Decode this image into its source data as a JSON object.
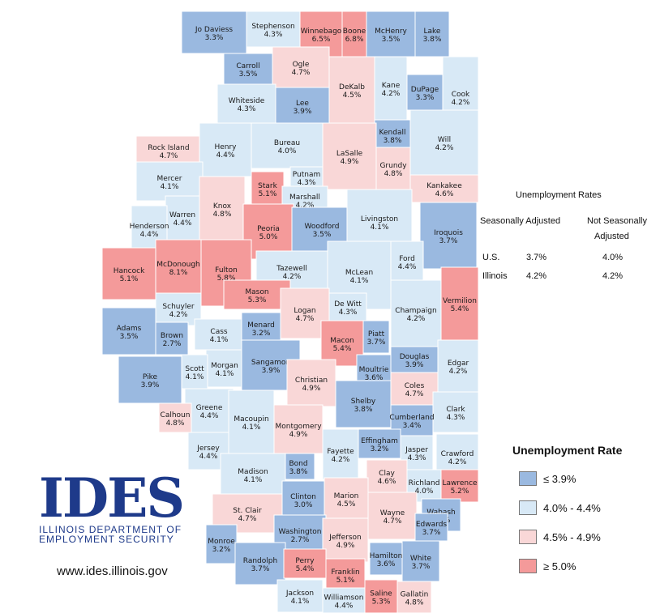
{
  "colors": {
    "low": "#9ab9e0",
    "mid_low": "#d8e9f6",
    "mid_high": "#f9d7d7",
    "high": "#f49a9a",
    "border": "#ffffff"
  },
  "summary": {
    "title": "Unemployment Rates",
    "col1": "Seasonally Adjusted",
    "col2_line1": "Not Seasonally",
    "col2_line2": "Adjusted",
    "rows": [
      {
        "label": "U.S.",
        "sa": "3.7%",
        "nsa": "4.0%"
      },
      {
        "label": "Illinois",
        "sa": "4.2%",
        "nsa": "4.2%"
      }
    ]
  },
  "legend": {
    "title": "Unemployment Rate",
    "items": [
      {
        "label": "≤ 3.9%",
        "color": "#9ab9e0"
      },
      {
        "label": "4.0% - 4.4%",
        "color": "#d8e9f6"
      },
      {
        "label": "4.5% - 4.9%",
        "color": "#f9d7d7"
      },
      {
        "label": "≥ 5.0%",
        "color": "#f49a9a"
      }
    ]
  },
  "logo": {
    "letters": "IDES",
    "line1": "ILLINOIS DEPARTMENT OF",
    "line2": "EMPLOYMENT SECURITY",
    "url": "www.ides.illinois.gov"
  },
  "counties": [
    {
      "name": "Jo Daviess",
      "rate": "3.3%",
      "cls": "low"
    },
    {
      "name": "Stephenson",
      "rate": "4.3%",
      "cls": "mid_low"
    },
    {
      "name": "Winnebago",
      "rate": "6.5%",
      "cls": "high"
    },
    {
      "name": "Boone",
      "rate": "6.8%",
      "cls": "high"
    },
    {
      "name": "McHenry",
      "rate": "3.5%",
      "cls": "low"
    },
    {
      "name": "Lake",
      "rate": "3.8%",
      "cls": "low"
    },
    {
      "name": "Carroll",
      "rate": "3.5%",
      "cls": "low"
    },
    {
      "name": "Ogle",
      "rate": "4.7%",
      "cls": "mid_high"
    },
    {
      "name": "DeKalb",
      "rate": "4.5%",
      "cls": "mid_high"
    },
    {
      "name": "Kane",
      "rate": "4.2%",
      "cls": "mid_low"
    },
    {
      "name": "DuPage",
      "rate": "3.3%",
      "cls": "low"
    },
    {
      "name": "Cook",
      "rate": "4.2%",
      "cls": "mid_low"
    },
    {
      "name": "Whiteside",
      "rate": "4.3%",
      "cls": "mid_low"
    },
    {
      "name": "Lee",
      "rate": "3.9%",
      "cls": "low"
    },
    {
      "name": "Kendall",
      "rate": "3.8%",
      "cls": "low"
    },
    {
      "name": "Will",
      "rate": "4.2%",
      "cls": "mid_low"
    },
    {
      "name": "Rock Island",
      "rate": "4.7%",
      "cls": "mid_high"
    },
    {
      "name": "Henry",
      "rate": "4.4%",
      "cls": "mid_low"
    },
    {
      "name": "Bureau",
      "rate": "4.0%",
      "cls": "mid_low"
    },
    {
      "name": "LaSalle",
      "rate": "4.9%",
      "cls": "mid_high"
    },
    {
      "name": "Grundy",
      "rate": "4.8%",
      "cls": "mid_high"
    },
    {
      "name": "Putnam",
      "rate": "4.3%",
      "cls": "mid_low"
    },
    {
      "name": "Mercer",
      "rate": "4.1%",
      "cls": "mid_low"
    },
    {
      "name": "Stark",
      "rate": "5.1%",
      "cls": "high"
    },
    {
      "name": "Marshall",
      "rate": "4.2%",
      "cls": "mid_low"
    },
    {
      "name": "Kankakee",
      "rate": "4.6%",
      "cls": "mid_high"
    },
    {
      "name": "Warren",
      "rate": "4.4%",
      "cls": "mid_low"
    },
    {
      "name": "Knox",
      "rate": "4.8%",
      "cls": "mid_high"
    },
    {
      "name": "Henderson",
      "rate": "4.4%",
      "cls": "mid_low"
    },
    {
      "name": "Peoria",
      "rate": "5.0%",
      "cls": "high"
    },
    {
      "name": "Woodford",
      "rate": "3.5%",
      "cls": "low"
    },
    {
      "name": "Livingston",
      "rate": "4.1%",
      "cls": "mid_low"
    },
    {
      "name": "Iroquois",
      "rate": "3.7%",
      "cls": "low"
    },
    {
      "name": "Hancock",
      "rate": "5.1%",
      "cls": "high"
    },
    {
      "name": "McDonough",
      "rate": "8.1%",
      "cls": "high"
    },
    {
      "name": "Fulton",
      "rate": "5.8%",
      "cls": "high"
    },
    {
      "name": "Tazewell",
      "rate": "4.2%",
      "cls": "mid_low"
    },
    {
      "name": "McLean",
      "rate": "4.1%",
      "cls": "mid_low"
    },
    {
      "name": "Ford",
      "rate": "4.4%",
      "cls": "mid_low"
    },
    {
      "name": "Mason",
      "rate": "5.3%",
      "cls": "high"
    },
    {
      "name": "Schuyler",
      "rate": "4.2%",
      "cls": "mid_low"
    },
    {
      "name": "Logan",
      "rate": "4.7%",
      "cls": "mid_high"
    },
    {
      "name": "De Witt",
      "rate": "4.3%",
      "cls": "mid_low"
    },
    {
      "name": "Champaign",
      "rate": "4.2%",
      "cls": "mid_low"
    },
    {
      "name": "Vermilion",
      "rate": "5.4%",
      "cls": "high"
    },
    {
      "name": "Adams",
      "rate": "3.5%",
      "cls": "low"
    },
    {
      "name": "Brown",
      "rate": "2.7%",
      "cls": "low"
    },
    {
      "name": "Cass",
      "rate": "4.1%",
      "cls": "mid_low"
    },
    {
      "name": "Menard",
      "rate": "3.2%",
      "cls": "low"
    },
    {
      "name": "Piatt",
      "rate": "3.7%",
      "cls": "low"
    },
    {
      "name": "Macon",
      "rate": "5.4%",
      "cls": "high"
    },
    {
      "name": "Morgan",
      "rate": "4.1%",
      "cls": "mid_low"
    },
    {
      "name": "Sangamon",
      "rate": "3.9%",
      "cls": "low"
    },
    {
      "name": "Douglas",
      "rate": "3.9%",
      "cls": "low"
    },
    {
      "name": "Edgar",
      "rate": "4.2%",
      "cls": "mid_low"
    },
    {
      "name": "Scott",
      "rate": "4.1%",
      "cls": "mid_low"
    },
    {
      "name": "Moultrie",
      "rate": "3.6%",
      "cls": "low"
    },
    {
      "name": "Pike",
      "rate": "3.9%",
      "cls": "low"
    },
    {
      "name": "Christian",
      "rate": "4.9%",
      "cls": "mid_high"
    },
    {
      "name": "Coles",
      "rate": "4.7%",
      "cls": "mid_high"
    },
    {
      "name": "Greene",
      "rate": "4.4%",
      "cls": "mid_low"
    },
    {
      "name": "Shelby",
      "rate": "3.8%",
      "cls": "low"
    },
    {
      "name": "Clark",
      "rate": "4.3%",
      "cls": "mid_low"
    },
    {
      "name": "Calhoun",
      "rate": "4.8%",
      "cls": "mid_high"
    },
    {
      "name": "Macoupin",
      "rate": "4.1%",
      "cls": "mid_low"
    },
    {
      "name": "Montgomery",
      "rate": "4.9%",
      "cls": "mid_high"
    },
    {
      "name": "Cumberland",
      "rate": "3.4%",
      "cls": "low"
    },
    {
      "name": "Jersey",
      "rate": "4.4%",
      "cls": "mid_low"
    },
    {
      "name": "Effingham",
      "rate": "3.2%",
      "cls": "low"
    },
    {
      "name": "Fayette",
      "rate": "4.2%",
      "cls": "mid_low"
    },
    {
      "name": "Jasper",
      "rate": "4.3%",
      "cls": "mid_low"
    },
    {
      "name": "Crawford",
      "rate": "4.2%",
      "cls": "mid_low"
    },
    {
      "name": "Bond",
      "rate": "3.8%",
      "cls": "low"
    },
    {
      "name": "Madison",
      "rate": "4.1%",
      "cls": "mid_low"
    },
    {
      "name": "Clay",
      "rate": "4.6%",
      "cls": "mid_high"
    },
    {
      "name": "Richland",
      "rate": "4.0%",
      "cls": "mid_low"
    },
    {
      "name": "Lawrence",
      "rate": "5.2%",
      "cls": "high"
    },
    {
      "name": "Clinton",
      "rate": "3.0%",
      "cls": "low"
    },
    {
      "name": "Marion",
      "rate": "4.5%",
      "cls": "mid_high"
    },
    {
      "name": "St. Clair",
      "rate": "4.7%",
      "cls": "mid_high"
    },
    {
      "name": "Wabash",
      "rate": "3.9%",
      "cls": "low"
    },
    {
      "name": "Washington",
      "rate": "2.7%",
      "cls": "low"
    },
    {
      "name": "Wayne",
      "rate": "4.7%",
      "cls": "mid_high"
    },
    {
      "name": "Edwards",
      "rate": "3.7%",
      "cls": "low"
    },
    {
      "name": "Monroe",
      "rate": "3.2%",
      "cls": "low"
    },
    {
      "name": "Jefferson",
      "rate": "4.9%",
      "cls": "mid_high"
    },
    {
      "name": "Hamilton",
      "rate": "3.6%",
      "cls": "low"
    },
    {
      "name": "White",
      "rate": "3.7%",
      "cls": "low"
    },
    {
      "name": "Randolph",
      "rate": "3.7%",
      "cls": "low"
    },
    {
      "name": "Perry",
      "rate": "5.4%",
      "cls": "high"
    },
    {
      "name": "Franklin",
      "rate": "5.1%",
      "cls": "high"
    },
    {
      "name": "Jackson",
      "rate": "4.1%",
      "cls": "mid_low"
    },
    {
      "name": "Williamson",
      "rate": "4.4%",
      "cls": "mid_low"
    },
    {
      "name": "Saline",
      "rate": "5.3%",
      "cls": "high"
    },
    {
      "name": "Gallatin",
      "rate": "4.8%",
      "cls": "mid_high"
    }
  ]
}
